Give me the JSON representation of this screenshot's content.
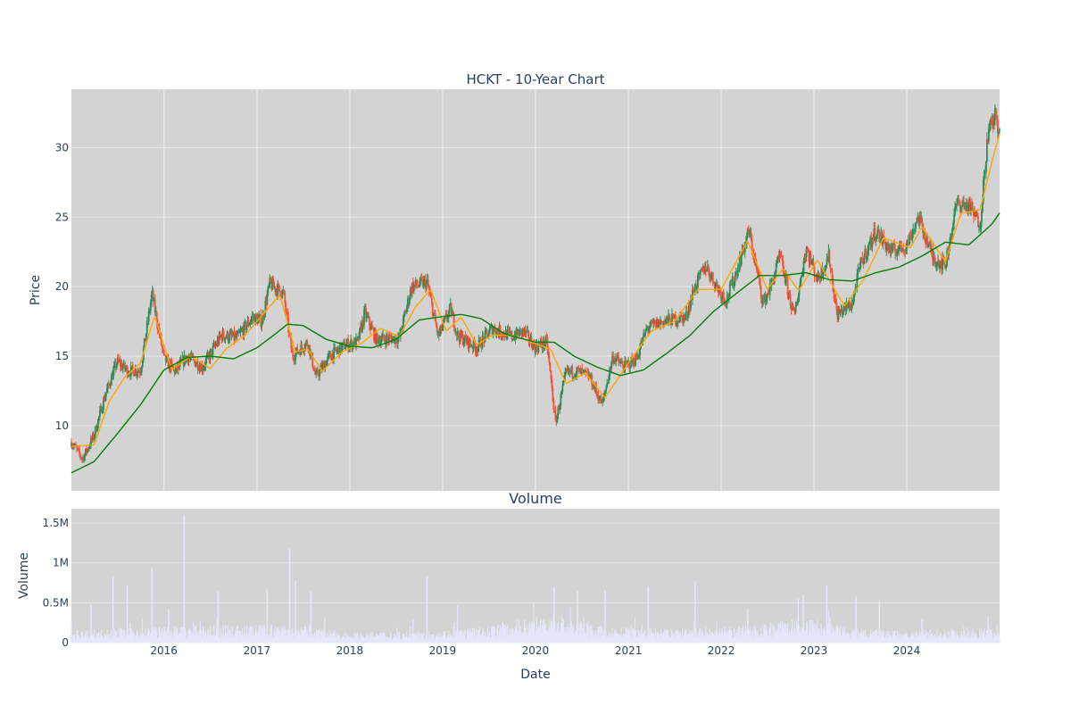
{
  "chart_data": [
    {
      "type": "candlestick",
      "title": "HCKT - 10-Year Chart",
      "ylabel": "Price",
      "xlabel": "",
      "ylim": [
        5.3,
        34.2
      ],
      "xlim": [
        "2015-01-02",
        "2024-12-31"
      ],
      "y_ticks": [
        10,
        15,
        20,
        25,
        30
      ],
      "x_ticks": [
        "2016",
        "2017",
        "2018",
        "2019",
        "2020",
        "2021",
        "2022",
        "2023",
        "2024"
      ],
      "grid": true,
      "plot_bg": "#d3d3d3",
      "grid_color": "#e8e8e8",
      "up_color": "#2e8b57",
      "down_color": "#ef553b",
      "price_series": [
        [
          "2015-01-02",
          8.8
        ],
        [
          "2015-02-15",
          7.6
        ],
        [
          "2015-04-01",
          9.3
        ],
        [
          "2015-05-15",
          12.2
        ],
        [
          "2015-07-01",
          14.6
        ],
        [
          "2015-08-15",
          13.9
        ],
        [
          "2015-10-01",
          14.0
        ],
        [
          "2015-11-15",
          19.5
        ],
        [
          "2016-01-01",
          14.8
        ],
        [
          "2016-02-15",
          13.9
        ],
        [
          "2016-04-01",
          15.0
        ],
        [
          "2016-06-01",
          14.2
        ],
        [
          "2016-08-15",
          16.5
        ],
        [
          "2016-10-15",
          16.3
        ],
        [
          "2016-12-15",
          17.8
        ],
        [
          "2017-01-20",
          17.5
        ],
        [
          "2017-02-20",
          20.2
        ],
        [
          "2017-04-15",
          19.5
        ],
        [
          "2017-05-20",
          15.0
        ],
        [
          "2017-07-20",
          16.0
        ],
        [
          "2017-08-20",
          13.5
        ],
        [
          "2017-10-15",
          15.0
        ],
        [
          "2017-12-15",
          15.8
        ],
        [
          "2018-02-01",
          16.0
        ],
        [
          "2018-03-01",
          18.1
        ],
        [
          "2018-04-15",
          16.2
        ],
        [
          "2018-07-15",
          16.3
        ],
        [
          "2018-09-01",
          20.0
        ],
        [
          "2018-11-01",
          20.3
        ],
        [
          "2018-12-15",
          16.4
        ],
        [
          "2019-02-01",
          18.4
        ],
        [
          "2019-03-01",
          16.5
        ],
        [
          "2019-05-15",
          15.6
        ],
        [
          "2019-07-15",
          17.0
        ],
        [
          "2019-10-01",
          16.4
        ],
        [
          "2019-11-15",
          16.8
        ],
        [
          "2020-01-01",
          15.6
        ],
        [
          "2020-02-15",
          16.0
        ],
        [
          "2020-03-20",
          10.2
        ],
        [
          "2020-05-01",
          13.8
        ],
        [
          "2020-06-15",
          13.9
        ],
        [
          "2020-08-01",
          13.5
        ],
        [
          "2020-09-20",
          11.5
        ],
        [
          "2020-11-01",
          15.0
        ],
        [
          "2020-12-15",
          14.2
        ],
        [
          "2021-02-01",
          14.8
        ],
        [
          "2021-03-15",
          17.0
        ],
        [
          "2021-05-15",
          17.5
        ],
        [
          "2021-08-15",
          17.8
        ],
        [
          "2021-09-15",
          19.8
        ],
        [
          "2021-11-01",
          21.5
        ],
        [
          "2021-12-15",
          20.0
        ],
        [
          "2022-01-20",
          19.0
        ],
        [
          "2022-02-20",
          20.5
        ],
        [
          "2022-04-20",
          24.0
        ],
        [
          "2022-06-15",
          18.8
        ],
        [
          "2022-07-15",
          20.0
        ],
        [
          "2022-08-20",
          22.2
        ],
        [
          "2022-10-15",
          17.8
        ],
        [
          "2022-12-01",
          22.8
        ],
        [
          "2023-01-15",
          20.5
        ],
        [
          "2023-03-01",
          22.2
        ],
        [
          "2023-04-01",
          18.0
        ],
        [
          "2023-06-01",
          18.8
        ],
        [
          "2023-07-01",
          21.5
        ],
        [
          "2023-09-01",
          24.0
        ],
        [
          "2023-11-01",
          22.5
        ],
        [
          "2024-01-01",
          23.0
        ],
        [
          "2024-02-15",
          25.0
        ],
        [
          "2024-04-15",
          22.0
        ],
        [
          "2024-06-01",
          21.6
        ],
        [
          "2024-07-15",
          26.0
        ],
        [
          "2024-09-01",
          25.8
        ],
        [
          "2024-10-15",
          24.5
        ],
        [
          "2024-11-15",
          31.0
        ],
        [
          "2024-12-15",
          32.4
        ],
        [
          "2024-12-31",
          30.8
        ]
      ],
      "series": [
        {
          "name": "",
          "color": "#ffa500",
          "values": [
            [
              "2015-01-02",
              8.5
            ],
            [
              "2015-04-01",
              8.6
            ],
            [
              "2015-06-01",
              11.8
            ],
            [
              "2015-08-01",
              13.5
            ],
            [
              "2015-10-01",
              14.5
            ],
            [
              "2015-11-25",
              17.9
            ],
            [
              "2016-02-01",
              14.0
            ],
            [
              "2016-04-15",
              15.0
            ],
            [
              "2016-07-01",
              14.1
            ],
            [
              "2016-09-01",
              15.5
            ],
            [
              "2016-11-15",
              16.5
            ],
            [
              "2017-01-01",
              17.5
            ],
            [
              "2017-04-01",
              19.4
            ],
            [
              "2017-06-01",
              15.3
            ],
            [
              "2017-07-20",
              15.5
            ],
            [
              "2017-09-15",
              13.9
            ],
            [
              "2017-12-01",
              15.3
            ],
            [
              "2018-02-15",
              15.9
            ],
            [
              "2018-05-01",
              17.0
            ],
            [
              "2018-07-15",
              16.4
            ],
            [
              "2018-09-15",
              18.5
            ],
            [
              "2018-11-15",
              19.8
            ],
            [
              "2019-01-15",
              16.8
            ],
            [
              "2019-03-15",
              17.8
            ],
            [
              "2019-05-15",
              15.8
            ],
            [
              "2019-07-15",
              16.5
            ],
            [
              "2019-10-01",
              16.5
            ],
            [
              "2019-12-15",
              16.0
            ],
            [
              "2020-03-01",
              15.5
            ],
            [
              "2020-05-01",
              13.0
            ],
            [
              "2020-07-15",
              13.8
            ],
            [
              "2020-10-01",
              12.0
            ],
            [
              "2021-01-01",
              14.5
            ],
            [
              "2021-04-01",
              16.8
            ],
            [
              "2021-07-01",
              17.5
            ],
            [
              "2021-10-01",
              19.8
            ],
            [
              "2022-01-01",
              19.8
            ],
            [
              "2022-04-15",
              23.3
            ],
            [
              "2022-07-01",
              19.8
            ],
            [
              "2022-09-01",
              21.3
            ],
            [
              "2022-11-01",
              19.7
            ],
            [
              "2023-01-15",
              21.9
            ],
            [
              "2023-05-01",
              18.6
            ],
            [
              "2023-07-15",
              20.5
            ],
            [
              "2023-10-01",
              23.5
            ],
            [
              "2024-01-15",
              22.8
            ],
            [
              "2024-03-01",
              24.3
            ],
            [
              "2024-06-01",
              21.8
            ],
            [
              "2024-08-01",
              25.3
            ],
            [
              "2024-10-15",
              25.5
            ],
            [
              "2024-12-01",
              29.0
            ],
            [
              "2024-12-31",
              31.0
            ]
          ]
        },
        {
          "name": "",
          "color": "#008000",
          "values": [
            [
              "2015-01-02",
              6.6
            ],
            [
              "2015-04-01",
              7.4
            ],
            [
              "2015-07-01",
              9.4
            ],
            [
              "2015-10-01",
              11.5
            ],
            [
              "2016-01-01",
              14.0
            ],
            [
              "2016-04-01",
              14.9
            ],
            [
              "2016-07-01",
              15.0
            ],
            [
              "2016-10-01",
              14.8
            ],
            [
              "2017-01-01",
              15.6
            ],
            [
              "2017-03-15",
              16.6
            ],
            [
              "2017-05-01",
              17.3
            ],
            [
              "2017-07-01",
              17.2
            ],
            [
              "2017-10-01",
              16.2
            ],
            [
              "2018-01-01",
              15.7
            ],
            [
              "2018-04-01",
              15.6
            ],
            [
              "2018-07-01",
              16.2
            ],
            [
              "2018-10-01",
              17.6
            ],
            [
              "2018-12-15",
              17.8
            ],
            [
              "2019-03-15",
              18.0
            ],
            [
              "2019-06-01",
              17.7
            ],
            [
              "2019-09-01",
              16.6
            ],
            [
              "2020-01-01",
              16.0
            ],
            [
              "2020-03-15",
              16.0
            ],
            [
              "2020-06-01",
              15.0
            ],
            [
              "2020-09-01",
              14.2
            ],
            [
              "2020-12-01",
              13.6
            ],
            [
              "2021-03-01",
              14.0
            ],
            [
              "2021-06-01",
              15.2
            ],
            [
              "2021-09-01",
              16.5
            ],
            [
              "2021-12-01",
              18.2
            ],
            [
              "2022-03-01",
              19.5
            ],
            [
              "2022-06-01",
              20.8
            ],
            [
              "2022-09-01",
              20.8
            ],
            [
              "2022-12-01",
              21.0
            ],
            [
              "2023-03-01",
              20.5
            ],
            [
              "2023-06-01",
              20.4
            ],
            [
              "2023-09-01",
              21.0
            ],
            [
              "2023-12-01",
              21.4
            ],
            [
              "2024-03-01",
              22.2
            ],
            [
              "2024-06-01",
              23.2
            ],
            [
              "2024-09-01",
              23.0
            ],
            [
              "2024-12-01",
              24.5
            ],
            [
              "2024-12-31",
              25.3
            ]
          ]
        }
      ]
    },
    {
      "type": "bar",
      "title": "Volume",
      "ylabel": "Volume",
      "xlabel": "Date",
      "ylim": [
        0,
        1680000
      ],
      "y_ticks": [
        0,
        500000,
        1000000,
        1500000
      ],
      "y_tick_labels": [
        "0",
        "0.5M",
        "1M",
        "1.5M"
      ],
      "x_ticks": [
        "2016",
        "2017",
        "2018",
        "2019",
        "2020",
        "2021",
        "2022",
        "2023",
        "2024"
      ],
      "grid": true,
      "plot_bg": "#d3d3d3",
      "grid_color": "#e8e8e8",
      "bar_color": "#e6e6fa",
      "baseline": [
        [
          "2015-01-02",
          100000
        ],
        [
          "2015-06-01",
          130000
        ],
        [
          "2016-06-01",
          150000
        ],
        [
          "2017-05-01",
          160000
        ],
        [
          "2018-01-01",
          90000
        ],
        [
          "2019-01-01",
          110000
        ],
        [
          "2019-06-01",
          140000
        ],
        [
          "2020-03-15",
          260000
        ],
        [
          "2020-09-01",
          140000
        ],
        [
          "2021-06-01",
          120000
        ],
        [
          "2022-04-01",
          150000
        ],
        [
          "2022-12-01",
          220000
        ],
        [
          "2023-06-01",
          130000
        ],
        [
          "2024-01-01",
          100000
        ],
        [
          "2024-09-01",
          140000
        ],
        [
          "2024-12-31",
          120000
        ]
      ],
      "peaks": [
        [
          "2015-03-20",
          470000
        ],
        [
          "2015-06-15",
          820000
        ],
        [
          "2015-08-10",
          720000
        ],
        [
          "2015-11-15",
          930000
        ],
        [
          "2016-01-20",
          420000
        ],
        [
          "2016-03-20",
          1600000
        ],
        [
          "2016-08-01",
          650000
        ],
        [
          "2017-02-10",
          680000
        ],
        [
          "2017-05-10",
          1180000
        ],
        [
          "2017-06-01",
          780000
        ],
        [
          "2017-08-01",
          650000
        ],
        [
          "2018-11-01",
          840000
        ],
        [
          "2019-03-01",
          470000
        ],
        [
          "2020-03-15",
          700000
        ],
        [
          "2020-06-15",
          650000
        ],
        [
          "2020-10-01",
          650000
        ],
        [
          "2021-03-20",
          700000
        ],
        [
          "2021-09-20",
          780000
        ],
        [
          "2022-04-15",
          430000
        ],
        [
          "2022-11-20",
          600000
        ],
        [
          "2023-02-20",
          720000
        ],
        [
          "2023-06-15",
          580000
        ],
        [
          "2023-09-15",
          530000
        ],
        [
          "2024-03-01",
          300000
        ],
        [
          "2024-11-15",
          330000
        ]
      ]
    }
  ]
}
